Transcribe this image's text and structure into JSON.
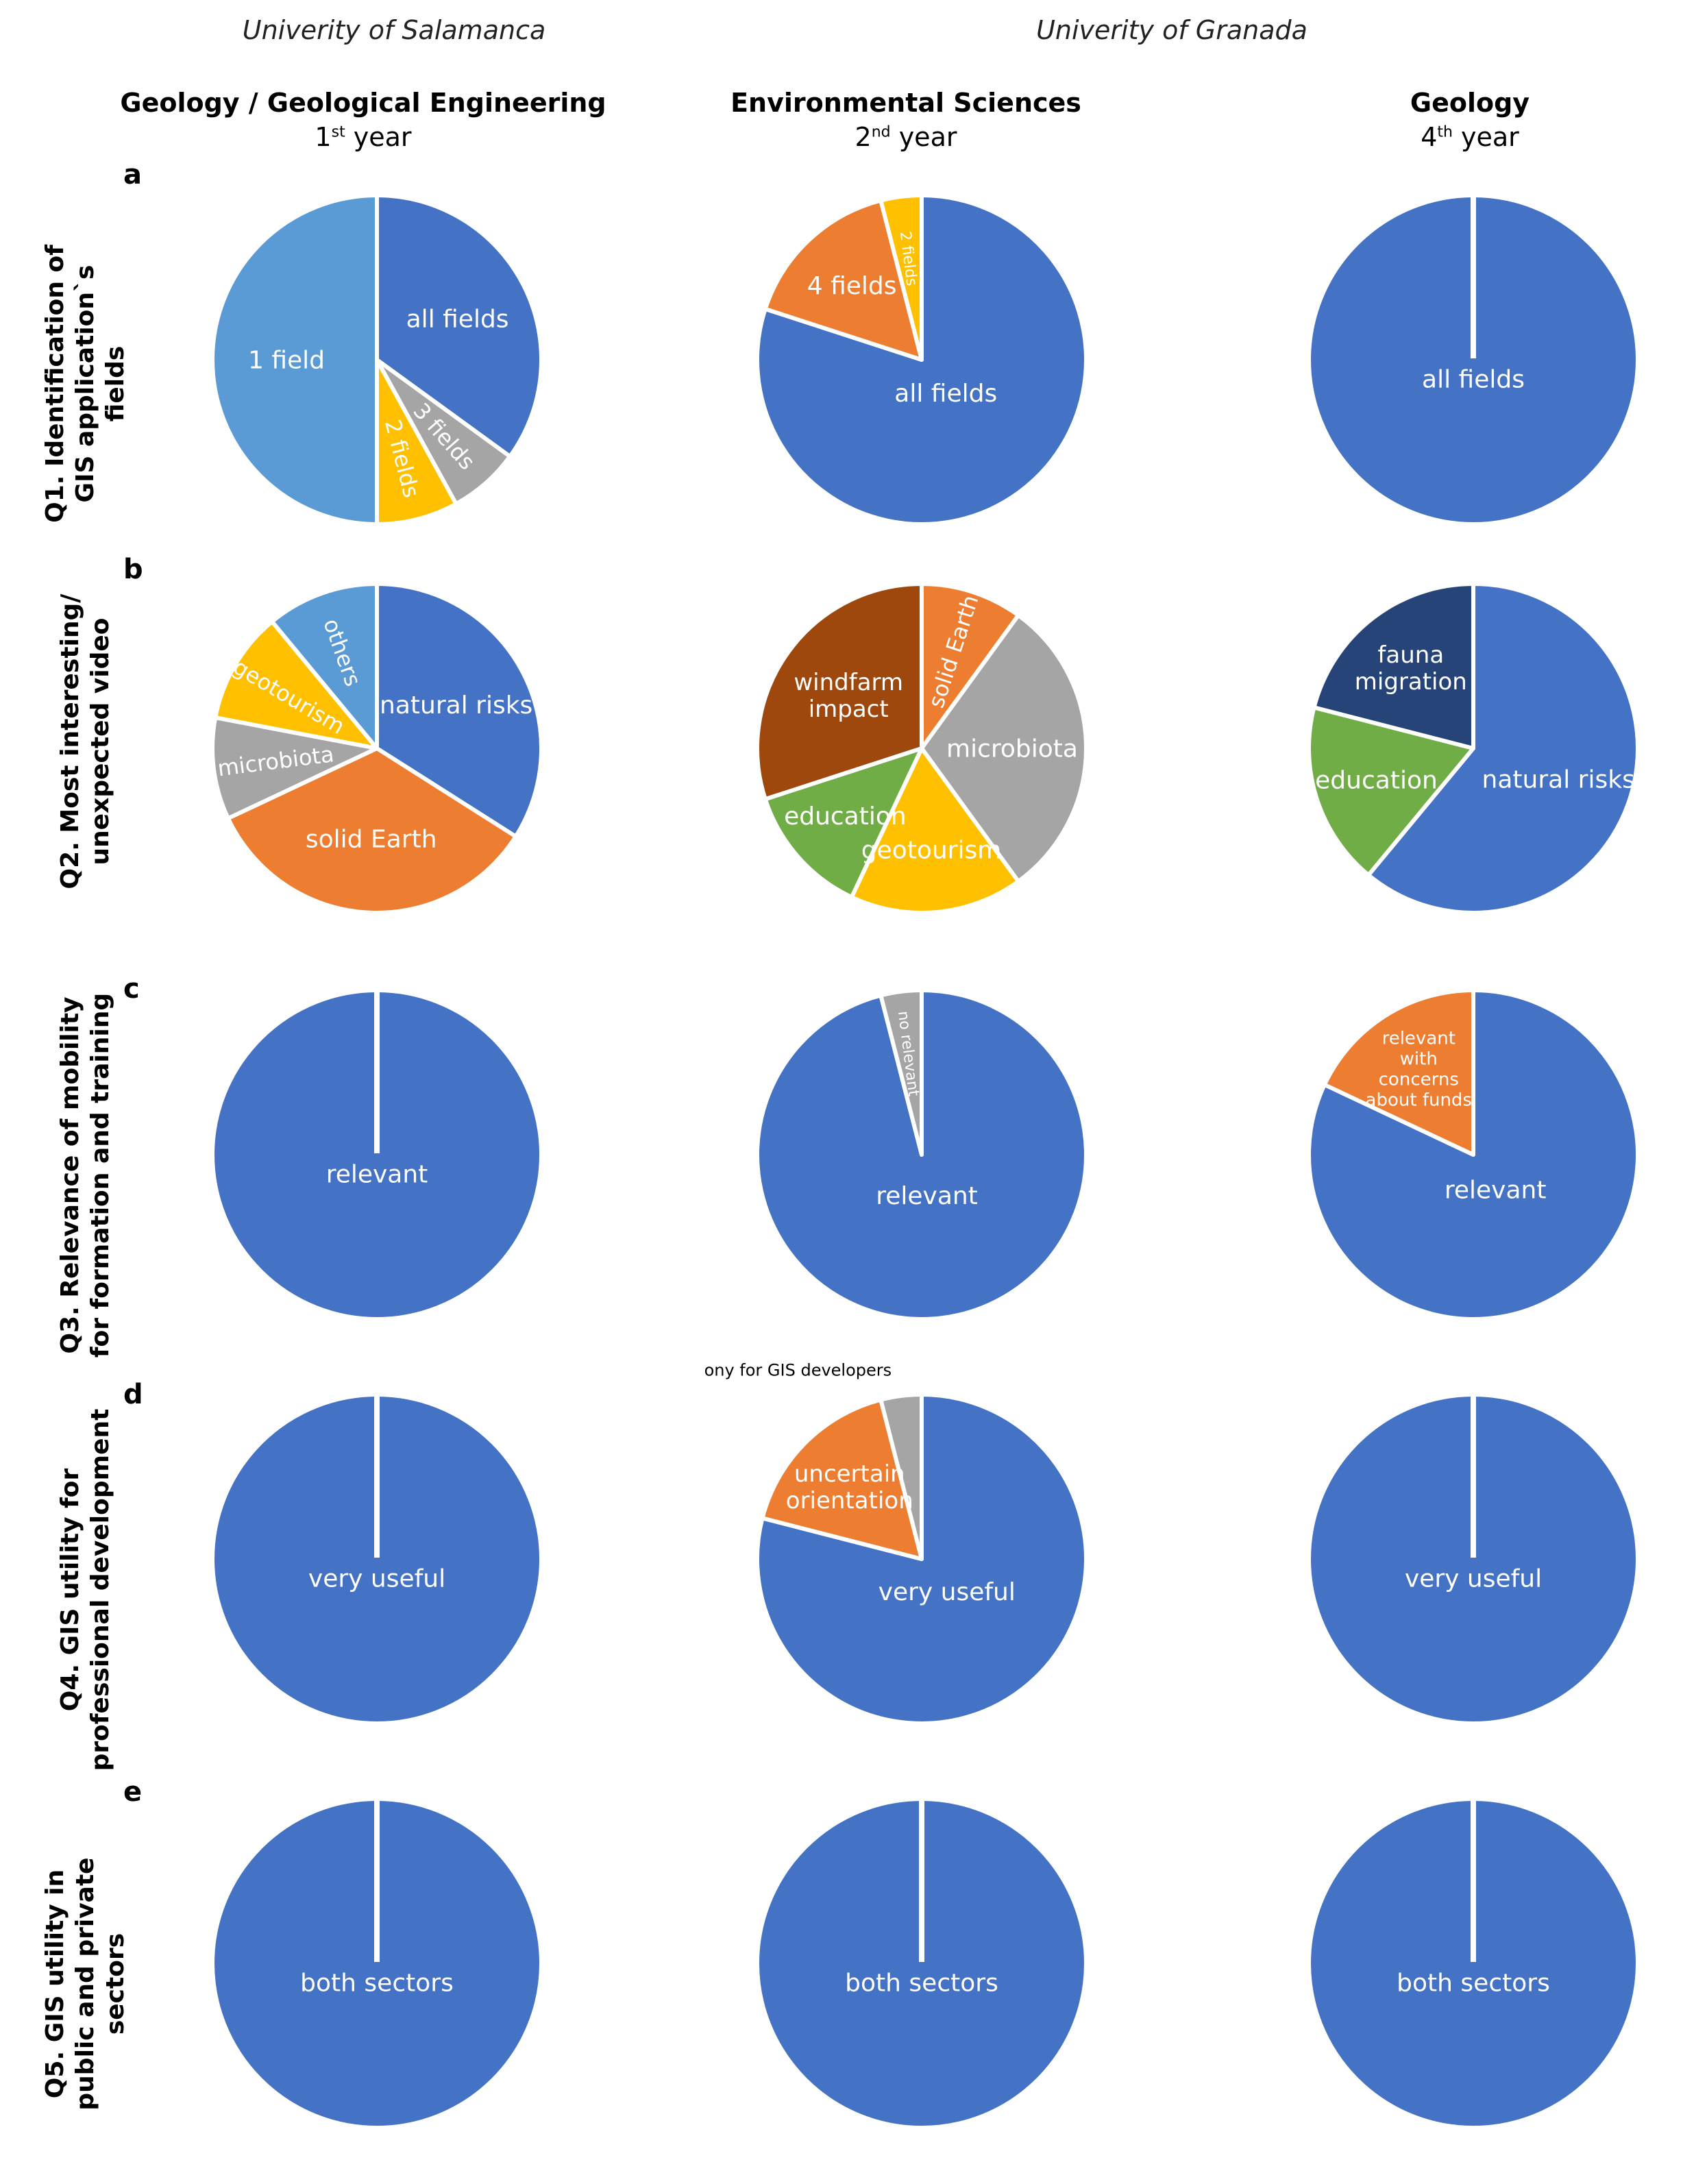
{
  "universities": [
    {
      "name": "Univerity of Salamanca"
    },
    {
      "name": "Univerity of Granada"
    }
  ],
  "columns": [
    {
      "title": "Geology / Geological Engineering",
      "year_num": "1",
      "year_sup": "st",
      "year_word": " year"
    },
    {
      "title": "Environmental Sciences",
      "year_num": "2",
      "year_sup": "nd",
      "year_word": " year"
    },
    {
      "title": "Geology",
      "year_num": "4",
      "year_sup": "th",
      "year_word": " year"
    }
  ],
  "rows": [
    {
      "letter": "a",
      "lines": [
        "Q1. Identification of",
        "GIS application`s",
        "fields"
      ]
    },
    {
      "letter": "b",
      "lines": [
        "Q2. Most interesting/",
        "unexpected video"
      ]
    },
    {
      "letter": "c",
      "lines": [
        "Q3. Relevance of mobility",
        "for  formation and training"
      ]
    },
    {
      "letter": "d",
      "lines": [
        "Q4. GIS utility for",
        "professional development"
      ]
    },
    {
      "letter": "e",
      "lines": [
        "Q5. GIS utility in",
        "public and private",
        "sectors"
      ]
    }
  ],
  "colors": {
    "blue": "#4472C4",
    "orange": "#ED7D31",
    "gray": "#A5A5A5",
    "yellow": "#FFC000",
    "lightblue": "#5B9BD5",
    "green": "#70AD47",
    "brown": "#9E480E",
    "navy": "#264478"
  },
  "chart_data": [
    {
      "type": "pie",
      "row": "a",
      "column": 0,
      "slices": [
        {
          "label": "all fields",
          "value": 35,
          "color": "blue"
        },
        {
          "label": "3 fields",
          "value": 7,
          "color": "gray"
        },
        {
          "label": "2 fields",
          "value": 8,
          "color": "yellow"
        },
        {
          "label": "1 field",
          "value": 50,
          "color": "lightblue"
        }
      ]
    },
    {
      "type": "pie",
      "row": "a",
      "column": 1,
      "slices": [
        {
          "label": "all fields",
          "value": 80,
          "color": "blue"
        },
        {
          "label": "4 fields",
          "value": 16,
          "color": "orange"
        },
        {
          "label": "2 fields",
          "value": 4,
          "color": "yellow"
        }
      ]
    },
    {
      "type": "pie",
      "row": "a",
      "column": 2,
      "slices": [
        {
          "label": "all fields",
          "value": 100,
          "color": "blue"
        }
      ]
    },
    {
      "type": "pie",
      "row": "b",
      "column": 0,
      "slices": [
        {
          "label": "natural risks",
          "value": 34,
          "color": "blue"
        },
        {
          "label": "solid Earth",
          "value": 34,
          "color": "orange"
        },
        {
          "label": "microbiota",
          "value": 10,
          "color": "gray"
        },
        {
          "label": "geotourism",
          "value": 11,
          "color": "yellow"
        },
        {
          "label": "others",
          "value": 11,
          "color": "lightblue"
        }
      ]
    },
    {
      "type": "pie",
      "row": "b",
      "column": 1,
      "slices": [
        {
          "label": "solid Earth",
          "value": 10,
          "color": "orange"
        },
        {
          "label": "microbiota",
          "value": 30,
          "color": "gray"
        },
        {
          "label": "geotourism",
          "value": 17,
          "color": "yellow"
        },
        {
          "label": "education",
          "value": 13,
          "color": "green"
        },
        {
          "label": "windfarm impact",
          "value": 30,
          "color": "brown"
        }
      ]
    },
    {
      "type": "pie",
      "row": "b",
      "column": 2,
      "slices": [
        {
          "label": "natural risks",
          "value": 61,
          "color": "blue"
        },
        {
          "label": "education",
          "value": 18,
          "color": "green"
        },
        {
          "label": "fauna migration",
          "value": 21,
          "color": "navy"
        }
      ]
    },
    {
      "type": "pie",
      "row": "c",
      "column": 0,
      "slices": [
        {
          "label": "relevant",
          "value": 100,
          "color": "blue"
        }
      ]
    },
    {
      "type": "pie",
      "row": "c",
      "column": 1,
      "slices": [
        {
          "label": "relevant",
          "value": 96,
          "color": "blue"
        },
        {
          "label": "no relevant",
          "value": 4,
          "color": "gray"
        }
      ]
    },
    {
      "type": "pie",
      "row": "c",
      "column": 2,
      "slices": [
        {
          "label": "relevant",
          "value": 82,
          "color": "blue"
        },
        {
          "label": "relevant with concerns about funds",
          "value": 18,
          "color": "orange"
        }
      ]
    },
    {
      "type": "pie",
      "row": "d",
      "column": 0,
      "slices": [
        {
          "label": "very useful",
          "value": 100,
          "color": "blue"
        }
      ]
    },
    {
      "type": "pie",
      "row": "d",
      "column": 1,
      "slices": [
        {
          "label": "very useful",
          "value": 79,
          "color": "blue"
        },
        {
          "label": "uncertain orientation",
          "value": 17,
          "color": "orange"
        },
        {
          "label": "ony for GIS developers",
          "value": 4,
          "color": "gray"
        }
      ]
    },
    {
      "type": "pie",
      "row": "d",
      "column": 2,
      "slices": [
        {
          "label": "very useful",
          "value": 100,
          "color": "blue"
        }
      ]
    },
    {
      "type": "pie",
      "row": "e",
      "column": 0,
      "slices": [
        {
          "label": "both sectors",
          "value": 100,
          "color": "blue"
        }
      ]
    },
    {
      "type": "pie",
      "row": "e",
      "column": 1,
      "slices": [
        {
          "label": "both sectors",
          "value": 100,
          "color": "blue"
        }
      ]
    },
    {
      "type": "pie",
      "row": "e",
      "column": 2,
      "slices": [
        {
          "label": "both sectors",
          "value": 100,
          "color": "blue"
        }
      ]
    }
  ]
}
